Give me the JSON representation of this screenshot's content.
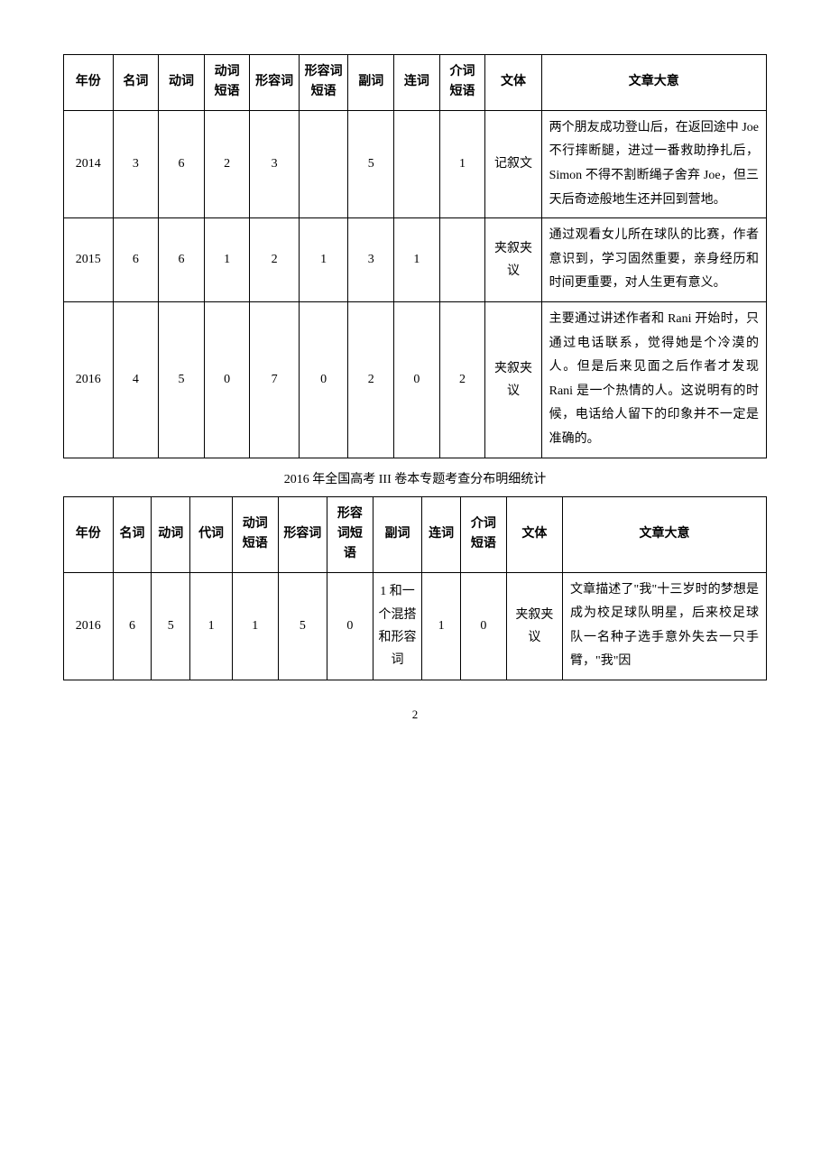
{
  "table1": {
    "columns": [
      "年份",
      "名词",
      "动词",
      "动词短语",
      "形容词",
      "形容词短语",
      "副词",
      "连词",
      "介词短语",
      "文体",
      "文章大意"
    ],
    "col_widths": [
      "7%",
      "6.5%",
      "6.5%",
      "6.5%",
      "7%",
      "7%",
      "6.5%",
      "6.5%",
      "6.5%",
      "8%",
      "32%"
    ],
    "rows": [
      {
        "cells": [
          "2014",
          "3",
          "6",
          "2",
          "3",
          "",
          "5",
          "",
          "1",
          "记叙文"
        ],
        "summary": "两个朋友成功登山后，在返回途中 Joe 不行摔断腿，进过一番救助挣扎后，Simon 不得不割断绳子舍弃 Joe，但三天后奇迹般地生还并回到营地。"
      },
      {
        "cells": [
          "2015",
          "6",
          "6",
          "1",
          "2",
          "1",
          "3",
          "1",
          "",
          "夹叙夹议"
        ],
        "summary": "通过观看女儿所在球队的比赛，作者意识到，学习固然重要，亲身经历和时间更重要，对人生更有意义。"
      },
      {
        "cells": [
          "2016",
          "4",
          "5",
          "0",
          "7",
          "0",
          "2",
          "0",
          "2",
          "夹叙夹议"
        ],
        "summary": "主要通过讲述作者和 Rani 开始时，只通过电话联系，觉得她是个冷漠的人。但是后来见面之后作者才发现 Rani 是一个热情的人。这说明有的时候，电话给人留下的印象并不一定是准确的。"
      }
    ]
  },
  "caption2": "2016 年全国高考 III 卷本专题考查分布明细统计",
  "table2": {
    "columns": [
      "年份",
      "名词",
      "动词",
      "代词",
      "动词短语",
      "形容词",
      "形容词短语",
      "副词",
      "连词",
      "介词短语",
      "文体",
      "文章大意"
    ],
    "col_widths": [
      "7%",
      "5.5%",
      "5.5%",
      "6%",
      "6.5%",
      "7%",
      "6.5%",
      "7%",
      "5.5%",
      "6.5%",
      "8%",
      "29%"
    ],
    "rows": [
      {
        "cells": [
          "2016",
          "6",
          "5",
          "1",
          "1",
          "5",
          "0",
          "1 和一个混搭和形容词",
          "1",
          "0",
          "夹叙夹议"
        ],
        "summary": "文章描述了\"我\"十三岁时的梦想是成为校足球队明星，后来校足球队一名种子选手意外失去一只手臂，\"我\"因"
      }
    ]
  },
  "page_number": "2"
}
